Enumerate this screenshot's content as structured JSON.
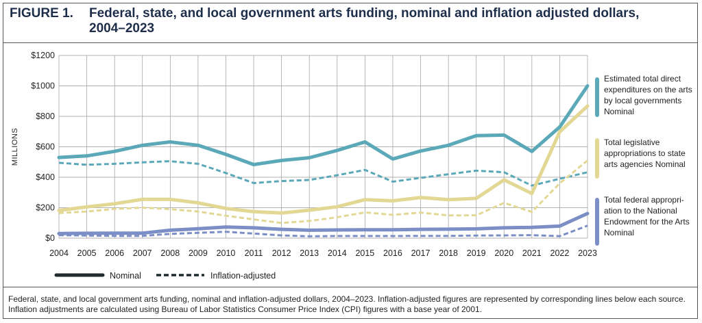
{
  "figure_label": "FIGURE 1.",
  "figure_title": "Federal, state, and local government arts funding, nominal and inflation adjusted dollars, 2004–2023",
  "caption": "Federal, state, and local government arts funding, nominal and inflation-adjusted dollars, 2004–2023. Inflation-adjusted figures are represented by corresponding lines below each source.  Inflation adjustments are calculated using Bureau of Labor Statistics Consumer Price Index (CPI) figures with a base year of 2001.",
  "colors": {
    "local": "#5aa8b8",
    "state": "#e2d793",
    "federal": "#7b8ec5",
    "legend": "#1f2a2e"
  },
  "chart_data": {
    "type": "line",
    "title": "",
    "xlabel": "",
    "ylabel": "MILLIONS",
    "x": [
      2004,
      2005,
      2006,
      2007,
      2008,
      2009,
      2010,
      2011,
      2012,
      2013,
      2014,
      2015,
      2016,
      2017,
      2018,
      2019,
      2020,
      2021,
      2022,
      2023
    ],
    "xticks": [
      "2004",
      "2005",
      "2006",
      "2007",
      "2008",
      "2009",
      "2010",
      "2011",
      "2012",
      "2013",
      "2014",
      "2015",
      "2016",
      "2017",
      "2018",
      "2019",
      "2020",
      "2021",
      "2022",
      "2023"
    ],
    "ylim": [
      0,
      1200
    ],
    "yticks": [
      0,
      200,
      400,
      600,
      800,
      1000,
      1200
    ],
    "ytick_labels": [
      "$0",
      "$200",
      "$400",
      "$600",
      "$800",
      "$1000",
      "$1200"
    ],
    "grid": true,
    "series": [
      {
        "key": "local",
        "name": "Estimated total direct expenditures on the arts by local governments Nominal",
        "style": "nominal",
        "values": [
          530,
          540,
          570,
          610,
          632,
          610,
          550,
          483,
          510,
          528,
          576,
          632,
          520,
          572,
          610,
          673,
          677,
          570,
          730,
          1000
        ]
      },
      {
        "key": "local",
        "style": "inflation",
        "values": [
          495,
          482,
          488,
          498,
          505,
          488,
          428,
          362,
          375,
          382,
          413,
          448,
          371,
          396,
          420,
          443,
          433,
          345,
          390,
          433
        ]
      },
      {
        "key": "state",
        "name": "Total legislative appropriations to state arts agencies Nominal",
        "style": "nominal",
        "values": [
          182,
          205,
          226,
          255,
          255,
          232,
          195,
          174,
          165,
          184,
          206,
          253,
          245,
          267,
          253,
          261,
          383,
          293,
          698,
          868
        ]
      },
      {
        "key": "state",
        "style": "inflation",
        "values": [
          165,
          175,
          192,
          200,
          190,
          175,
          147,
          123,
          100,
          113,
          137,
          169,
          153,
          168,
          149,
          150,
          232,
          172,
          360,
          510
        ]
      },
      {
        "key": "federal",
        "name": "Total federal appropriation to the National Endowment for the Arts Nominal",
        "style": "nominal",
        "values": [
          30,
          32,
          33,
          33,
          52,
          62,
          73,
          68,
          58,
          52,
          54,
          55,
          55,
          58,
          59,
          61,
          68,
          71,
          79,
          162
        ]
      },
      {
        "key": "federal",
        "style": "inflation",
        "values": [
          20,
          17,
          15,
          15,
          28,
          35,
          42,
          30,
          18,
          12,
          14,
          14,
          14,
          15,
          15,
          17,
          18,
          20,
          13,
          82
        ]
      }
    ],
    "labels": {
      "local": [
        "Estimated total direct",
        "expenditures on the arts",
        "by local governments",
        "Nominal"
      ],
      "state": [
        "Total legislative",
        "appropriations to state",
        "arts agencies Nominal"
      ],
      "federal": [
        "Total federal appropri-",
        "ation to the National",
        "Endowment for the Arts",
        "Nominal"
      ]
    },
    "legend": {
      "nominal": "Nominal",
      "inflation": "Inflation-adjusted",
      "position": "bottom"
    }
  }
}
